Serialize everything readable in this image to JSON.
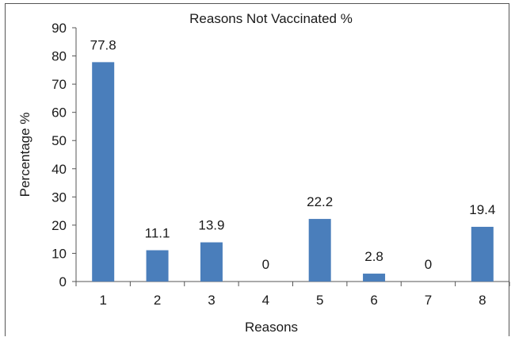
{
  "chart_data": {
    "type": "bar",
    "title": "Reasons Not Vaccinated %",
    "xlabel": "Reasons",
    "ylabel": "Percentage %",
    "categories": [
      "1",
      "2",
      "3",
      "4",
      "5",
      "6",
      "7",
      "8"
    ],
    "values": [
      77.8,
      11.1,
      13.9,
      0,
      22.2,
      2.8,
      0,
      19.4
    ],
    "data_labels": [
      "77.8",
      "11.1",
      "13.9",
      "0",
      "22.2",
      "2.8",
      "0",
      "19.4"
    ],
    "ylim": [
      0,
      90
    ],
    "yticks": [
      0,
      10,
      20,
      30,
      40,
      50,
      60,
      70,
      80,
      90
    ],
    "ytick_labels": [
      "0",
      "10",
      "20",
      "30",
      "40",
      "50",
      "60",
      "70",
      "80",
      "90"
    ],
    "grid": false,
    "legend": "none",
    "bar_color": "#4a7ebb"
  }
}
